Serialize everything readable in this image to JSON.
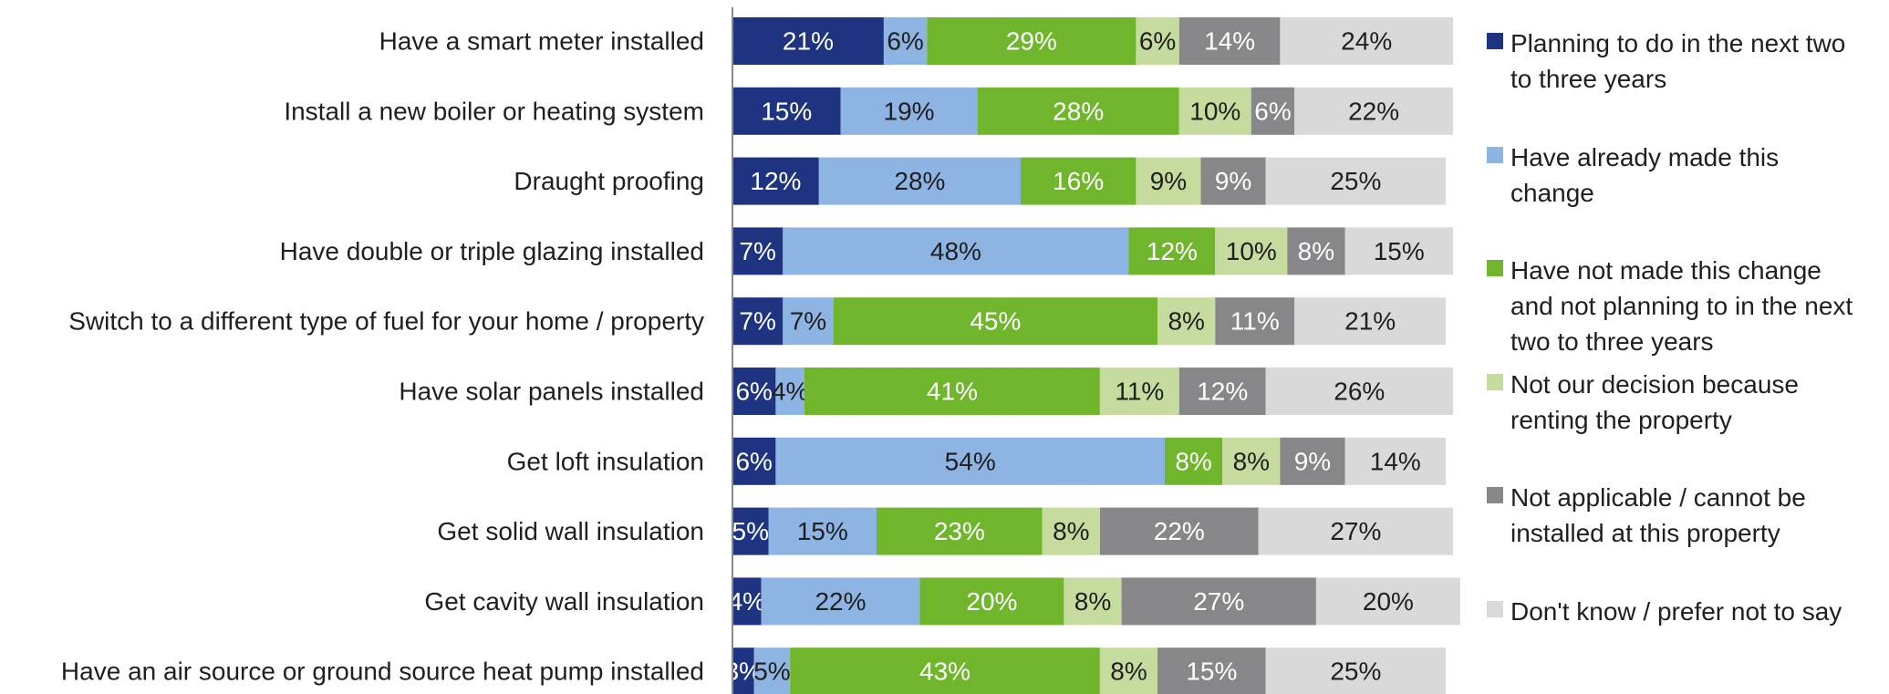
{
  "chart_data": {
    "type": "bar",
    "orientation": "horizontal",
    "stacked": true,
    "percent": true,
    "xlim": [
      0,
      100
    ],
    "grid": false,
    "legend_position": "right",
    "categories": [
      "Have a smart meter installed",
      "Install a new boiler or heating system",
      "Draught proofing",
      "Have double or triple glazing installed",
      "Switch to a different type of fuel for your home / property",
      "Have solar panels installed",
      "Get loft insulation",
      "Get solid wall insulation",
      "Get cavity wall insulation",
      "Have an air source or ground source heat pump installed"
    ],
    "series": [
      {
        "name": "Planning to do in the next two to three years",
        "color": "#1f3480",
        "label_color": "#ffffff",
        "values": [
          21,
          15,
          12,
          7,
          7,
          6,
          6,
          5,
          4,
          3
        ]
      },
      {
        "name": "Have already made this change",
        "color": "#8eb4e3",
        "label_color": "#1f1f1f",
        "values": [
          6,
          19,
          28,
          48,
          7,
          4,
          54,
          15,
          22,
          5
        ]
      },
      {
        "name": "Have not made this change and not planning to in the next two to three years",
        "color": "#70b62c",
        "label_color": "#ffffff",
        "values": [
          29,
          28,
          16,
          12,
          45,
          41,
          8,
          23,
          20,
          43
        ]
      },
      {
        "name": "Not our decision because renting the property",
        "color": "#c5dc9e",
        "label_color": "#1f1f1f",
        "values": [
          6,
          10,
          9,
          10,
          8,
          11,
          8,
          8,
          8,
          8
        ]
      },
      {
        "name": "Not applicable / cannot be installed at this property",
        "color": "#87878a",
        "label_color": "#ffffff",
        "values": [
          14,
          6,
          9,
          8,
          11,
          12,
          9,
          22,
          27,
          15
        ]
      },
      {
        "name": "Don't know / prefer not to say",
        "color": "#d9d9d9",
        "label_color": "#1f1f1f",
        "values": [
          24,
          22,
          25,
          15,
          21,
          26,
          14,
          27,
          20,
          25
        ]
      }
    ]
  },
  "legend": {
    "items": [
      {
        "lines": [
          "Planning to do in the next two",
          "to three years"
        ],
        "color": "#1f3480"
      },
      {
        "lines": [
          "Have already made this",
          "change"
        ],
        "color": "#8eb4e3"
      },
      {
        "lines": [
          "Have not made this change",
          "and not planning to in the next",
          "two to three years"
        ],
        "color": "#70b62c"
      },
      {
        "lines": [
          "Not our decision because",
          "renting the property"
        ],
        "color": "#c5dc9e"
      },
      {
        "lines": [
          "Not applicable / cannot be",
          "installed at this property"
        ],
        "color": "#87878a"
      },
      {
        "lines": [
          "Don't know / prefer not to say"
        ],
        "color": "#d9d9d9"
      }
    ]
  }
}
